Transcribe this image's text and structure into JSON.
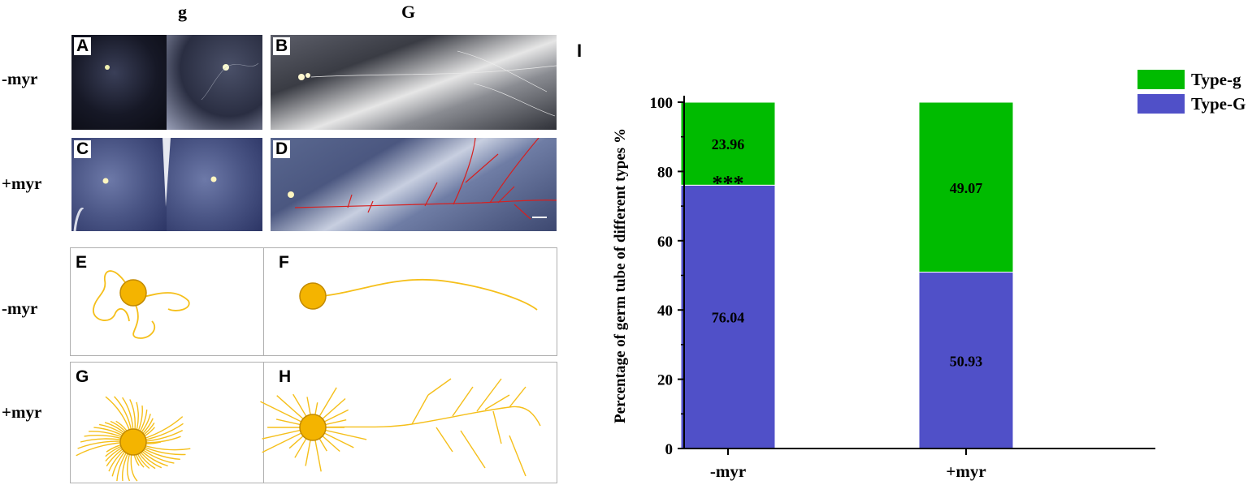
{
  "columns": {
    "left": "g",
    "right": "G"
  },
  "rows": {
    "r1": "-myr",
    "r2": "+myr",
    "r3": "-myr",
    "r4": "+myr"
  },
  "panels": {
    "A": "A",
    "B": "B",
    "C": "C",
    "D": "D",
    "E": "E",
    "F": "F",
    "G": "G",
    "H": "H"
  },
  "chart_panel_letter": "I",
  "colors": {
    "type_g": "#00bb00",
    "type_G": "#5050c8",
    "hypha": "#f5bf1a",
    "spore": "#f4b400",
    "trace": "#d62020"
  },
  "chart_data": {
    "type": "bar",
    "stacked": true,
    "categories": [
      "-myr",
      "+myr"
    ],
    "series": [
      {
        "name": "Type-G",
        "values": [
          76.04,
          50.93
        ],
        "color": "#5050c8"
      },
      {
        "name": "Type-g",
        "values": [
          23.96,
          49.07
        ],
        "color": "#00bb00"
      }
    ],
    "ylabel": "Percentage of  germ tube of different types %",
    "ylim": [
      0,
      100
    ],
    "yticks": [
      0,
      20,
      40,
      60,
      80,
      100
    ],
    "legend_position": "top-right",
    "annotation": "***"
  }
}
